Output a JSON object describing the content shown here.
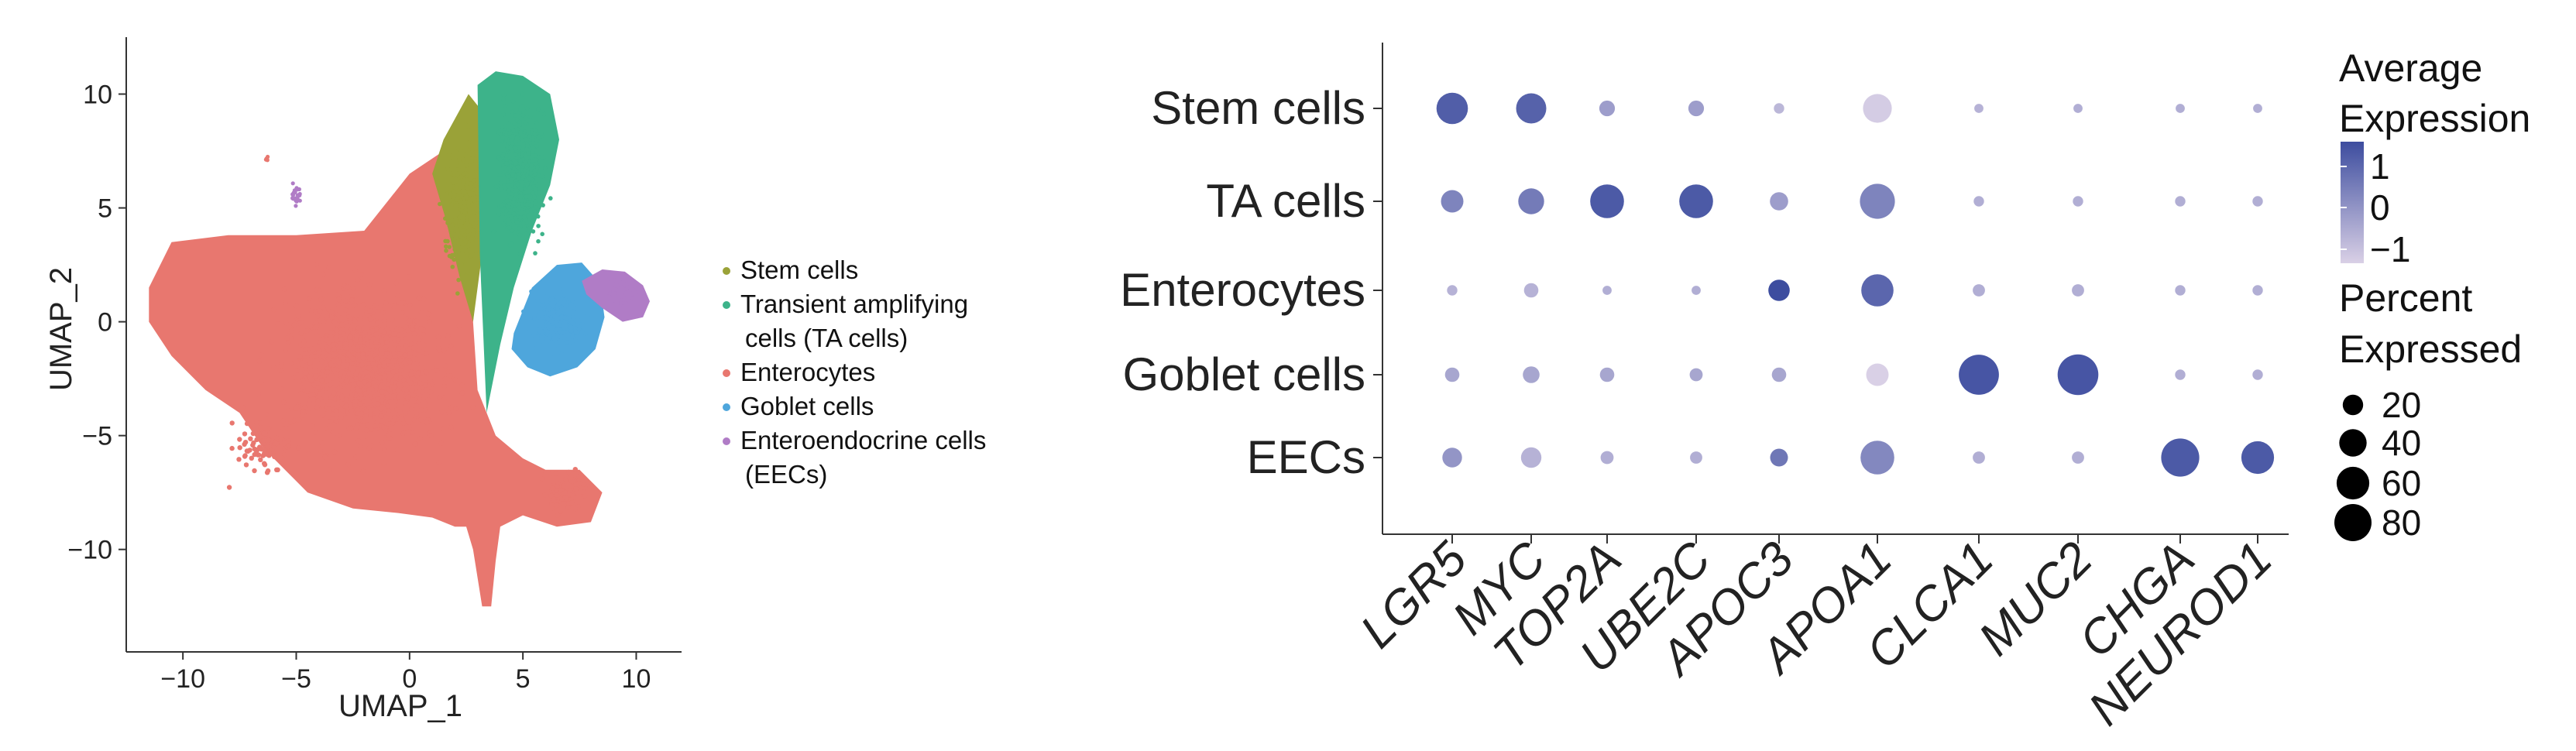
{
  "chart_data": [
    {
      "type": "scatter",
      "subtype": "umap",
      "xlabel": "UMAP_1",
      "ylabel": "UMAP_2",
      "xlim": [
        -12.5,
        12
      ],
      "ylim": [
        -14.5,
        12.5
      ],
      "x_ticks": [
        "−10",
        "−5",
        "0",
        "5",
        "10"
      ],
      "x_tick_values": [
        -10,
        -5,
        0,
        5,
        10
      ],
      "y_ticks": [
        "10",
        "5",
        "0",
        "−5",
        "−10"
      ],
      "y_tick_values": [
        10,
        5,
        0,
        -5,
        -10
      ],
      "grid": false,
      "legend_position": "right",
      "series": [
        {
          "name": "Stem cells",
          "color": "#9aa238"
        },
        {
          "name": "Transient amplifying",
          "name_line2": "cells (TA cells)",
          "color": "#3db38a"
        },
        {
          "name": "Enterocytes",
          "color": "#e8776f"
        },
        {
          "name": "Goblet cells",
          "color": "#4ea6dc"
        },
        {
          "name": "Enteroendocrine cells",
          "name_line2": "(EECs)",
          "color": "#b07cc6"
        }
      ]
    },
    {
      "type": "dot",
      "rows": [
        "Stem cells",
        "TA cells",
        "Enterocytes",
        "Goblet cells",
        "EECs"
      ],
      "genes": [
        "LGR5",
        "MYC",
        "TOP2A",
        "UBE2C",
        "APOC3",
        "APOA1",
        "CLCA1",
        "MUC2",
        "CHGA",
        "NEUROD1"
      ],
      "average_expression": [
        [
          1.5,
          1.4,
          0.0,
          0.0,
          -0.6,
          -1.1,
          -0.5,
          -0.4,
          -0.4,
          -0.4
        ],
        [
          0.6,
          0.8,
          1.6,
          1.6,
          0.0,
          0.6,
          -0.4,
          -0.4,
          -0.4,
          -0.4
        ],
        [
          -0.5,
          -0.5,
          -0.4,
          -0.4,
          1.9,
          1.3,
          -0.4,
          -0.4,
          -0.4,
          -0.4
        ],
        [
          -0.2,
          -0.2,
          -0.2,
          -0.2,
          -0.2,
          -1.2,
          1.7,
          1.7,
          -0.4,
          -0.4
        ],
        [
          0.2,
          -0.5,
          -0.4,
          -0.4,
          0.9,
          0.5,
          -0.4,
          -0.4,
          1.6,
          1.6
        ]
      ],
      "percent_expressed": [
        [
          55,
          50,
          10,
          10,
          3,
          45,
          2,
          2,
          2,
          2
        ],
        [
          25,
          35,
          65,
          65,
          15,
          70,
          3,
          3,
          3,
          3
        ],
        [
          3,
          8,
          2,
          2,
          22,
          58,
          5,
          5,
          3,
          3
        ],
        [
          8,
          12,
          8,
          6,
          8,
          25,
          95,
          98,
          3,
          3
        ],
        [
          18,
          20,
          6,
          5,
          14,
          65,
          5,
          5,
          85,
          60
        ]
      ],
      "color_low": "#d9d0e6",
      "color_high": "#3d4d9f",
      "color_legend_title_line1": "Average",
      "color_legend_title_line2": "Expression",
      "color_ticks": [
        "1",
        "0",
        "−1"
      ],
      "color_tick_values": [
        1,
        0,
        -1
      ],
      "size_legend_title_line1": "Percent",
      "size_legend_title_line2": "Expressed",
      "size_ticks": [
        "20",
        "40",
        "60",
        "80"
      ],
      "size_tick_values": [
        20,
        40,
        60,
        80
      ]
    }
  ]
}
